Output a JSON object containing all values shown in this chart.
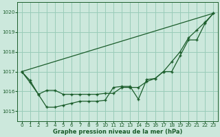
{
  "bg_color": "#cce8dc",
  "grid_color": "#99ccb8",
  "line_color": "#1a5c2a",
  "xlabel": "Graphe pression niveau de la mer (hPa)",
  "xlabel_color": "#1a5c2a",
  "tick_color": "#1a5c2a",
  "ylim": [
    1014.5,
    1020.5
  ],
  "xlim": [
    -0.5,
    23.5
  ],
  "yticks": [
    1015,
    1016,
    1017,
    1018,
    1019,
    1020
  ],
  "xticks": [
    0,
    1,
    2,
    3,
    4,
    5,
    6,
    7,
    8,
    9,
    10,
    11,
    12,
    13,
    14,
    15,
    16,
    17,
    18,
    19,
    20,
    21,
    22,
    23
  ],
  "line1_x": [
    0,
    1,
    2,
    3,
    4,
    5,
    6,
    7,
    8,
    9,
    10,
    11,
    12,
    13,
    14,
    15,
    16,
    17,
    18,
    19,
    20,
    21,
    22,
    23
  ],
  "line1_y": [
    1017.0,
    1016.45,
    1015.85,
    1015.2,
    1015.2,
    1015.3,
    1015.4,
    1015.5,
    1015.5,
    1015.5,
    1015.55,
    1016.2,
    1016.25,
    1016.25,
    1015.6,
    1016.6,
    1016.65,
    1017.0,
    1017.0,
    1017.8,
    1018.6,
    1018.6,
    1019.45,
    1019.95
  ],
  "line2_x": [
    0,
    23
  ],
  "line2_y": [
    1017.0,
    1019.95
  ],
  "line3_x": [
    0,
    1,
    2,
    3,
    4,
    5,
    6,
    7,
    8,
    9,
    10,
    11,
    12,
    13,
    14,
    15,
    16,
    17,
    18,
    19,
    20,
    21,
    22,
    23
  ],
  "line3_y": [
    1017.0,
    1016.55,
    1015.85,
    1016.05,
    1016.05,
    1015.85,
    1015.85,
    1015.85,
    1015.85,
    1015.85,
    1015.9,
    1015.9,
    1016.2,
    1016.2,
    1016.2,
    1016.5,
    1016.65,
    1017.0,
    1017.5,
    1018.0,
    1018.7,
    1019.1,
    1019.5,
    1019.95
  ]
}
